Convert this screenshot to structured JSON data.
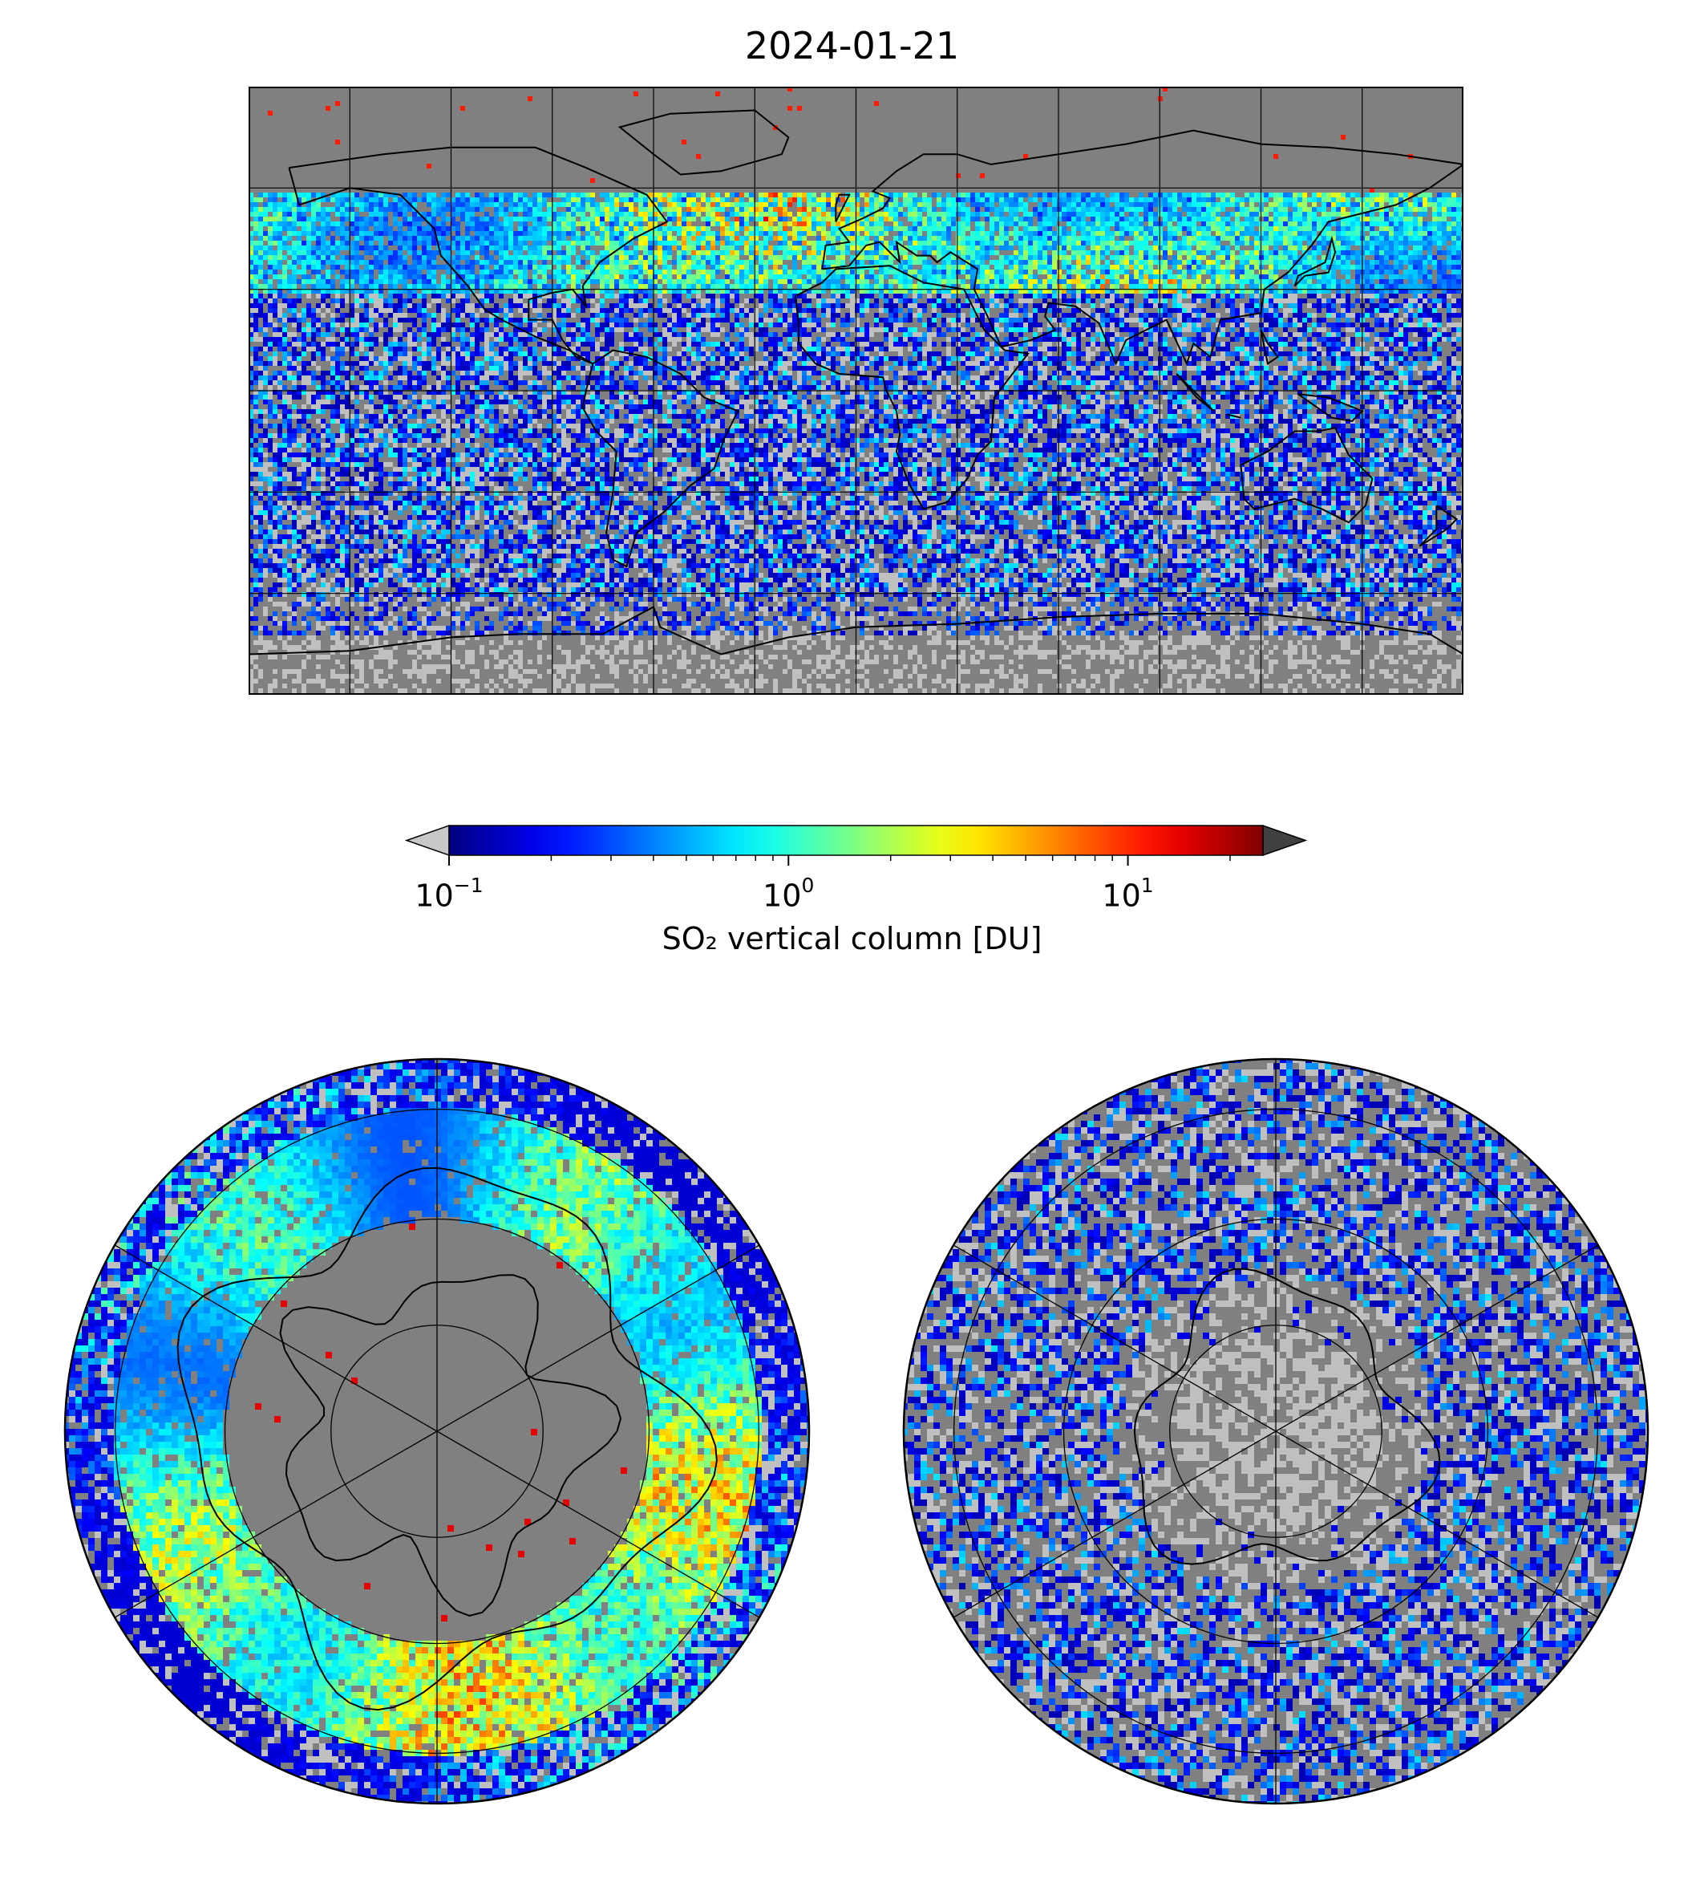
{
  "title": "2024-01-21",
  "colorbar": {
    "label": "SO₂ vertical column [DU]",
    "scale": "log",
    "range": [
      0.1,
      25
    ],
    "ticks": [
      {
        "base": "10",
        "exp": "−1",
        "value": 0.1
      },
      {
        "base": "10",
        "exp": "0",
        "value": 1
      },
      {
        "base": "10",
        "exp": "1",
        "value": 10
      }
    ],
    "colormap": "jet",
    "extend": "both",
    "under_color": "#c8c8c8",
    "over_color": "#404040"
  },
  "colors": {
    "no_data": "#808080",
    "below_detection": "#c0c0c0",
    "coastline": "#000000"
  },
  "panels": [
    {
      "name": "global-map",
      "projection": "plate-carree",
      "lat_range": [
        -90,
        90
      ],
      "lon_range": [
        -180,
        180
      ],
      "gridlines_lon": [
        -150,
        -120,
        -90,
        -60,
        -30,
        0,
        30,
        60,
        90,
        120,
        150
      ],
      "gridlines_lat": [
        -60,
        -30,
        0,
        30,
        60
      ]
    },
    {
      "name": "north-polar-map",
      "projection": "north-polar-stereographic",
      "rings_lat": [
        80,
        60,
        40,
        20
      ]
    },
    {
      "name": "south-polar-map",
      "projection": "south-polar-stereographic",
      "rings_lat": [
        -80,
        -60,
        -40,
        -20
      ]
    }
  ]
}
